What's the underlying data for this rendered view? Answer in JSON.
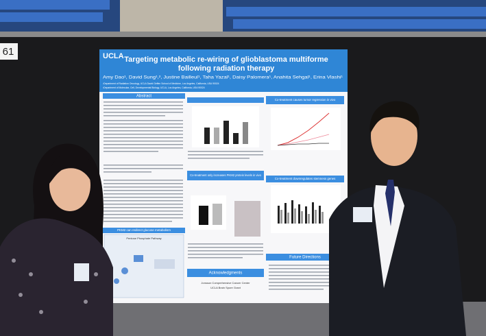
{
  "label_card": "61",
  "poster": {
    "logo": "UCLA",
    "title_lines": [
      "Targeting metabolic re-wiring of glioblastoma multiforme",
      "following radiation therapy"
    ],
    "authors": "Amy Dao¹, David Sung¹,², Justine Bailleul¹, Taha Yazal¹, Daisy Palomera¹, Anahita Sehgal¹, Erina Vlashi¹",
    "affiliations": [
      "¹Department of Radiation Oncology, UCLA David Geffen School of Medicine, Los Angeles, California, USA 90024",
      "²Department of Molecular, Cell, Developmental Biology, UCLA, Los Angeles, California, USA 90024"
    ],
    "headings": {
      "abstract": "Abstract",
      "pkm2": "PKM2 can redirect glucose metabolism",
      "protein": "Co-treatment only increases PKM2 protein levels in vivo",
      "regression": "Co-treatment causes tumor regression in vivo",
      "stemness": "Co-treatment downregulates stemness genes",
      "future": "Future Directions",
      "acknowledgments": "Acknowledgments"
    },
    "pathway": "Pentose Phosphate Pathway",
    "acknowledgment_lines": [
      "Jonsson Comprehensive Cancer Center",
      "UCLA Brain Spore Grant"
    ]
  }
}
